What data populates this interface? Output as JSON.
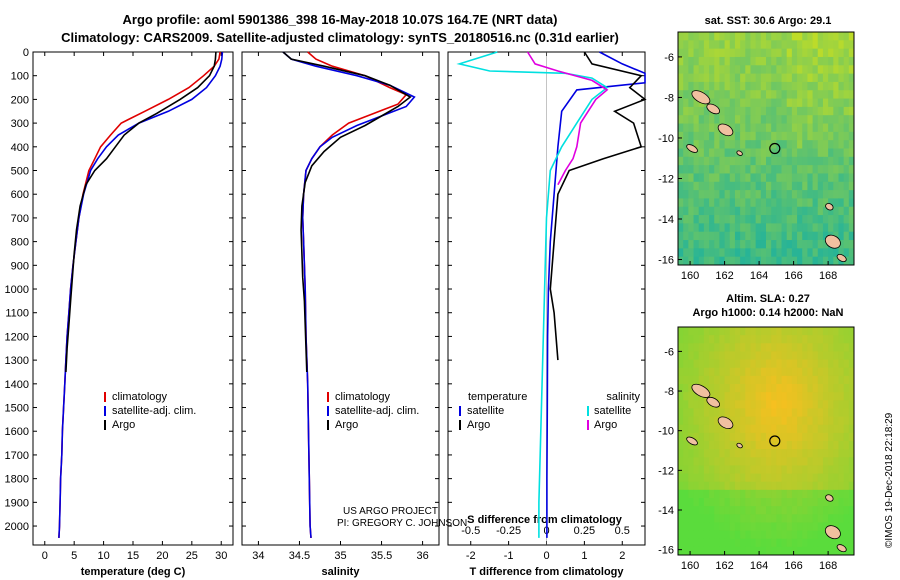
{
  "header": {
    "line1": "Argo profile: aoml 5901386_398 16-May-2018 10.07S 164.7E (NRT data)",
    "line2": "Climatology: CARS2009. Satellite-adjusted climatology: synTS_20180516.nc (0.31d earlier)"
  },
  "colors": {
    "climatology": "#e00000",
    "satellite": "#0000e0",
    "argo": "#000000",
    "sat_salinity": "#00e0e0",
    "argo_salinity_diff": "#e000e0"
  },
  "pressure_ticks": [
    "0",
    "100",
    "200",
    "300",
    "400",
    "500",
    "600",
    "700",
    "800",
    "900",
    "1000",
    "1100",
    "1200",
    "1300",
    "1400",
    "1500",
    "1600",
    "1700",
    "1800",
    "1900",
    "2000"
  ],
  "credits": {
    "line1": "US ARGO PROJECT",
    "line2": "PI: GREGORY C. JOHNSON"
  },
  "map1": {
    "title": "sat. SST: 30.6 Argo: 29.1",
    "lat_ticks": [
      "-6",
      "-8",
      "-10",
      "-12",
      "-14",
      "-16"
    ],
    "lon_ticks": [
      "160",
      "162",
      "164",
      "166",
      "168"
    ]
  },
  "map2": {
    "title1": "Altim. SLA: 0.27",
    "title2": "Argo h1000: 0.14 h2000: NaN",
    "lat_ticks": [
      "-6",
      "-8",
      "-10",
      "-12",
      "-14",
      "-16"
    ],
    "lon_ticks": [
      "160",
      "162",
      "164",
      "166",
      "168"
    ]
  },
  "stamp": "©IMOS 19-Dec-2018 22:18:29",
  "chart_data": [
    {
      "type": "line",
      "xlabel": "temperature (deg C)",
      "x_ticks": [
        "0",
        "5",
        "10",
        "15",
        "20",
        "25",
        "30"
      ],
      "xlim": [
        -2,
        32
      ],
      "ylim": [
        2080,
        0
      ],
      "legend": [
        "climatology",
        "satellite-adj. clim.",
        "Argo"
      ],
      "series": [
        {
          "name": "climatology",
          "color": "red",
          "points": [
            [
              29.8,
              0
            ],
            [
              29.6,
              30
            ],
            [
              28.8,
              60
            ],
            [
              27,
              100
            ],
            [
              24.5,
              150
            ],
            [
              21,
              200
            ],
            [
              17,
              250
            ],
            [
              13,
              300
            ],
            [
              11.2,
              350
            ],
            [
              9.5,
              400
            ],
            [
              8.5,
              450
            ],
            [
              7.5,
              500
            ],
            [
              6.5,
              600
            ],
            [
              5.8,
              700
            ],
            [
              5.3,
              800
            ],
            [
              4.8,
              900
            ],
            [
              4.4,
              1000
            ],
            [
              4.1,
              1100
            ],
            [
              3.8,
              1200
            ],
            [
              3.6,
              1300
            ],
            [
              3.4,
              1400
            ],
            [
              3.2,
              1500
            ],
            [
              3.0,
              1600
            ],
            [
              2.9,
              1700
            ],
            [
              2.7,
              1800
            ],
            [
              2.6,
              1900
            ],
            [
              2.5,
              2000
            ],
            [
              2.4,
              2050
            ]
          ]
        },
        {
          "name": "satellite-adj. clim.",
          "color": "blue",
          "points": [
            [
              30.2,
              0
            ],
            [
              30.1,
              30
            ],
            [
              29.8,
              60
            ],
            [
              29,
              100
            ],
            [
              27.5,
              150
            ],
            [
              25,
              200
            ],
            [
              21,
              250
            ],
            [
              16,
              300
            ],
            [
              12.5,
              350
            ],
            [
              10.5,
              400
            ],
            [
              9,
              450
            ],
            [
              7.8,
              500
            ],
            [
              6.6,
              600
            ],
            [
              5.8,
              700
            ],
            [
              5.3,
              800
            ],
            [
              4.8,
              900
            ],
            [
              4.4,
              1000
            ],
            [
              4.1,
              1100
            ],
            [
              3.8,
              1200
            ],
            [
              3.6,
              1300
            ],
            [
              3.4,
              1400
            ],
            [
              3.2,
              1500
            ],
            [
              3.0,
              1600
            ],
            [
              2.9,
              1700
            ],
            [
              2.7,
              1800
            ],
            [
              2.6,
              1900
            ],
            [
              2.5,
              2000
            ],
            [
              2.4,
              2050
            ]
          ]
        },
        {
          "name": "Argo",
          "color": "black",
          "points": [
            [
              29.1,
              0
            ],
            [
              29,
              30
            ],
            [
              28.8,
              60
            ],
            [
              28,
              100
            ],
            [
              26,
              150
            ],
            [
              23,
              200
            ],
            [
              19,
              260
            ],
            [
              16,
              300
            ],
            [
              13.5,
              350
            ],
            [
              12,
              400
            ],
            [
              10.5,
              450
            ],
            [
              8.5,
              500
            ],
            [
              7,
              560
            ],
            [
              6,
              650
            ],
            [
              5.4,
              750
            ],
            [
              5,
              850
            ],
            [
              4.7,
              950
            ],
            [
              4.4,
              1050
            ],
            [
              4.1,
              1150
            ],
            [
              3.8,
              1250
            ],
            [
              3.6,
              1350
            ]
          ]
        }
      ]
    },
    {
      "type": "line",
      "xlabel": "salinity",
      "x_ticks": [
        "34",
        "34.5",
        "35",
        "35.5",
        "36"
      ],
      "xlim": [
        33.8,
        36.2
      ],
      "ylim": [
        2080,
        0
      ],
      "legend": [
        "climatology",
        "satellite-adj. clim.",
        "Argo"
      ],
      "series": [
        {
          "name": "climatology",
          "color": "red",
          "points": [
            [
              34.6,
              0
            ],
            [
              34.7,
              30
            ],
            [
              34.9,
              60
            ],
            [
              35.3,
              100
            ],
            [
              35.6,
              150
            ],
            [
              35.8,
              180
            ],
            [
              35.7,
              220
            ],
            [
              35.4,
              260
            ],
            [
              35.1,
              300
            ],
            [
              34.9,
              350
            ],
            [
              34.75,
              400
            ],
            [
              34.65,
              450
            ],
            [
              34.58,
              500
            ],
            [
              34.55,
              600
            ],
            [
              34.54,
              700
            ],
            [
              34.55,
              800
            ],
            [
              34.56,
              900
            ],
            [
              34.57,
              1000
            ],
            [
              34.58,
              1200
            ],
            [
              34.6,
              1400
            ],
            [
              34.61,
              1600
            ],
            [
              34.62,
              1800
            ],
            [
              34.63,
              2000
            ],
            [
              34.64,
              2050
            ]
          ]
        },
        {
          "name": "satellite-adj. clim.",
          "color": "blue",
          "points": [
            [
              34.3,
              0
            ],
            [
              34.4,
              30
            ],
            [
              34.7,
              60
            ],
            [
              35.2,
              100
            ],
            [
              35.6,
              140
            ],
            [
              35.9,
              190
            ],
            [
              35.8,
              230
            ],
            [
              35.5,
              270
            ],
            [
              35.2,
              310
            ],
            [
              34.9,
              360
            ],
            [
              34.75,
              400
            ],
            [
              34.65,
              450
            ],
            [
              34.58,
              500
            ],
            [
              34.55,
              600
            ],
            [
              34.54,
              700
            ],
            [
              34.55,
              800
            ],
            [
              34.56,
              900
            ],
            [
              34.57,
              1000
            ],
            [
              34.58,
              1200
            ],
            [
              34.6,
              1400
            ],
            [
              34.61,
              1600
            ],
            [
              34.62,
              1800
            ],
            [
              34.63,
              2000
            ],
            [
              34.64,
              2050
            ]
          ]
        },
        {
          "name": "Argo",
          "color": "black",
          "points": [
            [
              34.3,
              0
            ],
            [
              34.4,
              30
            ],
            [
              34.8,
              60
            ],
            [
              35.3,
              100
            ],
            [
              35.6,
              140
            ],
            [
              35.85,
              190
            ],
            [
              35.7,
              230
            ],
            [
              35.5,
              270
            ],
            [
              35.3,
              310
            ],
            [
              35.0,
              360
            ],
            [
              34.8,
              420
            ],
            [
              34.65,
              480
            ],
            [
              34.57,
              550
            ],
            [
              34.53,
              650
            ],
            [
              34.52,
              750
            ],
            [
              34.53,
              850
            ],
            [
              34.54,
              950
            ],
            [
              34.56,
              1050
            ],
            [
              34.57,
              1150
            ],
            [
              34.58,
              1250
            ],
            [
              34.59,
              1350
            ]
          ]
        }
      ]
    },
    {
      "type": "line",
      "xlabel": "T difference from climatology",
      "xlabel_top": "S difference from climatology",
      "x_ticks": [
        "-2",
        "-1",
        "0",
        "1",
        "2"
      ],
      "x_ticks_top": [
        "-0.5",
        "-0.25",
        "0",
        "0.25",
        "0.5"
      ],
      "xlim": [
        -2.6,
        2.6
      ],
      "ylim": [
        2080,
        0
      ],
      "legend_left_title": "temperature",
      "legend_right_title": "salinity",
      "legend_left": [
        "satellite",
        "Argo"
      ],
      "legend_right": [
        "satellite",
        "Argo"
      ],
      "series": [
        {
          "name": "satellite",
          "color": "blue",
          "points": [
            [
              1.4,
              0
            ],
            [
              2,
              50
            ],
            [
              2.6,
              90
            ],
            [
              2.6,
              130
            ],
            [
              0.8,
              160
            ],
            [
              0.4,
              250
            ],
            [
              0.3,
              400
            ],
            [
              0.2,
              600
            ],
            [
              0.1,
              800
            ],
            [
              0.05,
              1000
            ],
            [
              0.03,
              1200
            ],
            [
              0.02,
              1500
            ],
            [
              0.01,
              1800
            ],
            [
              0.01,
              2050
            ]
          ]
        },
        {
          "name": "Argo",
          "color": "black",
          "points": [
            [
              1,
              0
            ],
            [
              1.2,
              50
            ],
            [
              2.5,
              100
            ],
            [
              2.2,
              150
            ],
            [
              2.6,
              200
            ],
            [
              1.8,
              250
            ],
            [
              2.3,
              300
            ],
            [
              2.5,
              400
            ],
            [
              1.5,
              450
            ],
            [
              0.6,
              500
            ],
            [
              0.3,
              600
            ],
            [
              0.2,
              800
            ],
            [
              0.1,
              1000
            ],
            [
              0.2,
              1100
            ],
            [
              0.3,
              1300
            ]
          ]
        },
        {
          "name": "satellite",
          "color": "cyan",
          "points": [
            [
              -1.3,
              0
            ],
            [
              -2.3,
              50
            ],
            [
              -1.5,
              80
            ],
            [
              0.5,
              90
            ],
            [
              1.2,
              110
            ],
            [
              1.6,
              150
            ],
            [
              1.2,
              200
            ],
            [
              0.8,
              300
            ],
            [
              0.4,
              400
            ],
            [
              0.1,
              500
            ],
            [
              0.0,
              700
            ],
            [
              -0.05,
              1000
            ],
            [
              -0.1,
              1300
            ],
            [
              -0.15,
              1600
            ],
            [
              -0.2,
              1900
            ],
            [
              -0.2,
              2050
            ]
          ]
        },
        {
          "name": "Argo",
          "color": "magenta",
          "points": [
            [
              -0.5,
              0
            ],
            [
              -0.3,
              50
            ],
            [
              0.3,
              80
            ],
            [
              1.2,
              120
            ],
            [
              1.6,
              160
            ],
            [
              1.3,
              200
            ],
            [
              0.9,
              300
            ],
            [
              0.8,
              400
            ],
            [
              0.7,
              450
            ],
            [
              0.5,
              500
            ],
            [
              0.3,
              560
            ]
          ]
        }
      ]
    }
  ]
}
